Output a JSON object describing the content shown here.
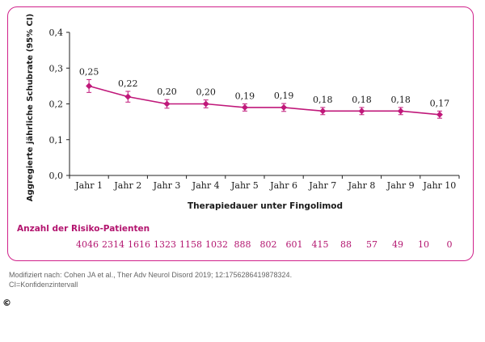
{
  "chart_data": {
    "type": "line",
    "categories": [
      "Jahr 1",
      "Jahr 2",
      "Jahr 3",
      "Jahr 4",
      "Jahr 5",
      "Jahr 6",
      "Jahr 7",
      "Jahr 8",
      "Jahr 9",
      "Jahr 10"
    ],
    "values": [
      0.25,
      0.22,
      0.2,
      0.2,
      0.19,
      0.19,
      0.18,
      0.18,
      0.18,
      0.17
    ],
    "value_labels": [
      "0,25",
      "0,22",
      "0,20",
      "0,20",
      "0,19",
      "0,19",
      "0,18",
      "0,18",
      "0,18",
      "0,17"
    ],
    "ci_half_width": [
      0.018,
      0.015,
      0.012,
      0.011,
      0.01,
      0.011,
      0.01,
      0.01,
      0.01,
      0.01
    ],
    "ylabel": "Aggregierte jährliche Schubrate (95% CI)",
    "xlabel": "Therapiedauer unter Fingolimod",
    "ylim": [
      0,
      0.4
    ],
    "yticks": [
      0,
      0.1,
      0.2,
      0.3,
      0.4
    ],
    "ytick_labels": [
      "0,0",
      "0,1",
      "0,2",
      "0,3",
      "0,4"
    ],
    "grid": false,
    "color": "#c0187a"
  },
  "risk_table": {
    "title": "Anzahl der Risiko-Patienten",
    "values": [
      "4046",
      "2314",
      "1616",
      "1323",
      "1158",
      "1032",
      "888",
      "802",
      "601",
      "415",
      "88",
      "57",
      "49",
      "10",
      "0"
    ],
    "color": "#b3156f"
  },
  "footer": {
    "source_line1": "Modifiziert nach: Cohen JA et al., Ther Adv Neurol Disord 2019; 12:1756286419878324.",
    "source_line2": "CI=Konfidenzintervall",
    "copyright": "©"
  }
}
